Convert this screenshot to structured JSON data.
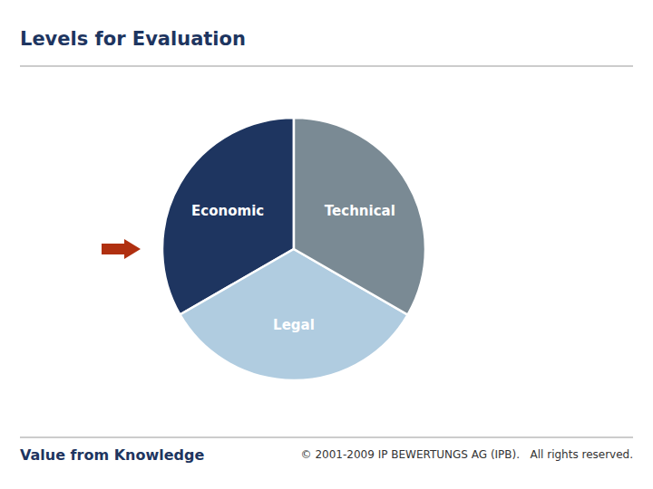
{
  "chart_data": {
    "type": "pie",
    "title": "Levels for Evaluation",
    "categories": [
      "Economic",
      "Legal",
      "Technical"
    ],
    "values": [
      33.33,
      33.33,
      33.34
    ],
    "colors": [
      "#1e3560",
      "#b0cce0",
      "#7a8a94"
    ],
    "annotations": [
      "Value from Knowledge",
      "© 2001-2009 IP BEWERTUNGS AG (IPB).   All rights reserved."
    ]
  }
}
